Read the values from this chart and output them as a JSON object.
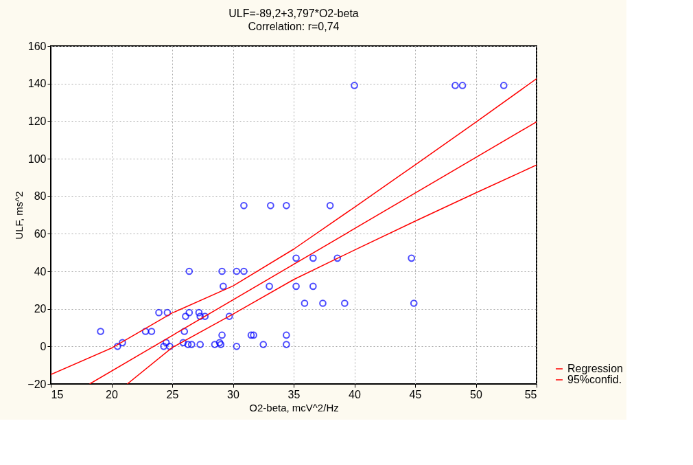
{
  "chart_data": {
    "type": "scatter",
    "title": "ULF=-89,2+3,797*O2-beta",
    "subtitle": "Correlation: r=0,74",
    "xlabel": "O2-beta, mcV^2/Hz",
    "ylabel": "ULF, ms^2",
    "xlim": [
      15,
      55
    ],
    "ylim": [
      -20,
      160
    ],
    "xticks": [
      15,
      20,
      25,
      30,
      35,
      40,
      45,
      50,
      55
    ],
    "yticks": [
      -20,
      0,
      20,
      40,
      60,
      80,
      100,
      120,
      140,
      160
    ],
    "grid": true,
    "legend": "right",
    "series": [
      {
        "color": "#0000ff",
        "marker": "circle",
        "x": [
          19.1,
          20.5,
          20.9,
          22.8,
          23.3,
          23.9,
          24.6,
          24.3,
          24.5,
          24.8,
          26.0,
          25.9,
          26.1,
          26.4,
          27.2,
          27.3,
          27.7,
          26.4,
          26.3,
          26.6,
          27.3,
          28.5,
          28.9,
          29.0,
          30.3,
          32.5,
          34.4,
          29.1,
          29.2,
          29.7,
          29.1,
          30.3,
          30.9,
          33.0,
          31.5,
          31.7,
          34.4,
          30.9,
          33.1,
          34.4,
          38.0,
          35.2,
          36.6,
          38.6,
          44.7,
          35.2,
          36.6,
          35.9,
          37.4,
          39.2,
          44.9,
          40.0,
          48.3,
          48.9,
          52.3
        ],
        "values": [
          8,
          0,
          2,
          8,
          8,
          18,
          18,
          0,
          2,
          0,
          8,
          2,
          16,
          18,
          18,
          16,
          16,
          40,
          1,
          1,
          1,
          1,
          2,
          1,
          0,
          1,
          1,
          6,
          32,
          16,
          40,
          40,
          40,
          32,
          6,
          6,
          6,
          75,
          75,
          75,
          75,
          47,
          47,
          47,
          47,
          32,
          32,
          23,
          23,
          23,
          23,
          139,
          139,
          139,
          139
        ]
      },
      {
        "type": "line",
        "name": "Regression",
        "color": "#ff0000",
        "x": [
          18.2,
          55
        ],
        "values": [
          -20,
          119.6
        ]
      },
      {
        "type": "line",
        "name": "95%confid.",
        "color": "#ff0000",
        "x": [
          15,
          20,
          25,
          30,
          35,
          40,
          45,
          50,
          55
        ],
        "values": [
          -15,
          -0.9,
          17.8,
          32.2,
          51.8,
          74.1,
          96.7,
          119.4,
          142.6
        ]
      },
      {
        "type": "line",
        "color": "#ff0000",
        "x": [
          21.3,
          25,
          30,
          35,
          40,
          45,
          50,
          55
        ],
        "values": [
          -20,
          -0.6,
          17.2,
          35.6,
          51.3,
          66.7,
          81.8,
          96.6
        ]
      }
    ]
  }
}
